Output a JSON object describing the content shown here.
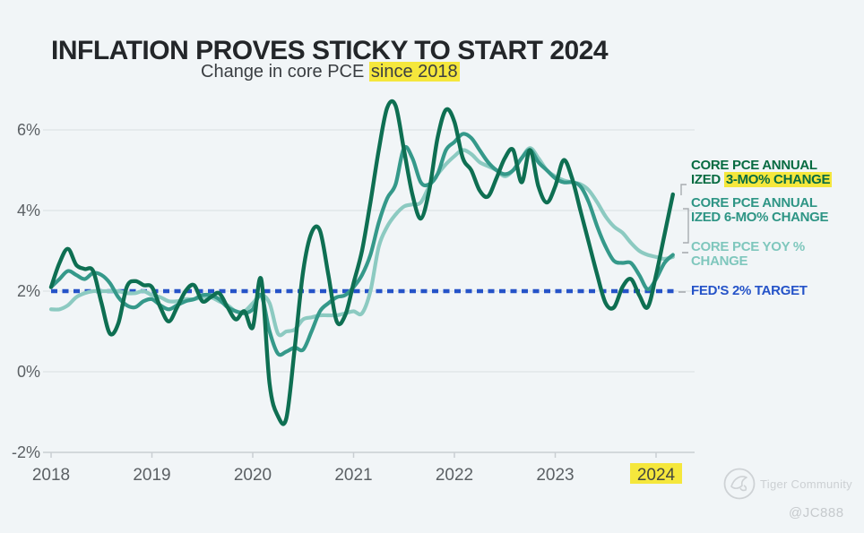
{
  "header": {
    "title": "INFLATION PROVES STICKY TO START 2024",
    "subtitle_prefix": "Change in core PCE ",
    "subtitle_highlight": "since 2018"
  },
  "legend": {
    "items": [
      {
        "line1": "CORE PCE ANNUAL",
        "line2_prefix": "IZED ",
        "line2_highlight": "3-MO% CHANGE",
        "color": "#076b41"
      },
      {
        "line1": "CORE PCE ANNUAL",
        "line2": "IZED 6-MO% CHANGE",
        "color": "#2e9585"
      },
      {
        "line1": "CORE PCE YOY %",
        "line2": "CHANGE",
        "color": "#7fc7bd"
      },
      {
        "line1": "FED'S 2% TARGET",
        "color": "#2553c8"
      }
    ]
  },
  "watermark": {
    "community": "Tiger Community",
    "user": "@JC888",
    "logo": "tiger-circle-sketch"
  },
  "colors": {
    "background": "#f1f5f7",
    "gridline": "#d9dee2",
    "axis": "#c9ced2",
    "tick_label": "#5b6064",
    "highlight_yellow": "#f5e73c",
    "series_3mo": "#0e6f52",
    "series_6mo": "#35998a",
    "series_yoy": "#8ccac1",
    "fed_target_blue": "#2553c8",
    "connector_gray": "#a7acb0"
  },
  "chart_data": {
    "type": "line",
    "title": "INFLATION PROVES STICKY TO START 2024",
    "subtitle": "Change in core PCE since 2018",
    "x_start_year": 2018,
    "x_step_months": 1,
    "x_tick_labels": [
      "2018",
      "2019",
      "2020",
      "2021",
      "2022",
      "2023",
      "2024"
    ],
    "x_highlight_tick": "2024",
    "y_ticks": [
      6,
      4,
      2,
      0,
      -2
    ],
    "y_tick_labels": [
      "6%",
      "4%",
      "2%",
      "0%",
      "-2%"
    ],
    "ylim": [
      -2.4,
      6.9
    ],
    "grid": "horizontal",
    "legend_position": "right",
    "target_line": {
      "label": "FED'S 2% TARGET",
      "value": 2,
      "style": "dotted",
      "color": "#2553c8"
    },
    "series": [
      {
        "name": "CORE PCE ANNUALIZED 3-MO% CHANGE",
        "color": "#0e6f52",
        "width": 4.4,
        "values": [
          2.1,
          2.7,
          3.05,
          2.65,
          2.55,
          2.5,
          1.7,
          0.95,
          1.2,
          2.1,
          2.25,
          2.15,
          2.1,
          1.6,
          1.25,
          1.6,
          2.0,
          2.15,
          1.75,
          1.85,
          1.95,
          1.6,
          1.3,
          1.5,
          1.1,
          2.3,
          -0.3,
          -1.1,
          -1.15,
          0.6,
          2.5,
          3.45,
          3.5,
          2.4,
          1.25,
          1.4,
          2.2,
          3.0,
          4.2,
          5.5,
          6.55,
          6.6,
          5.5,
          4.4,
          3.8,
          4.5,
          5.8,
          6.5,
          6.2,
          5.3,
          5.0,
          4.5,
          4.35,
          4.8,
          5.3,
          5.5,
          4.7,
          5.5,
          4.6,
          4.2,
          4.6,
          5.25,
          4.8,
          4.0,
          3.2,
          2.4,
          1.7,
          1.6,
          2.1,
          2.3,
          1.9,
          1.6,
          2.4,
          3.4,
          4.4
        ]
      },
      {
        "name": "CORE PCE ANNUALIZED 6-MO% CHANGE",
        "color": "#35998a",
        "width": 4.2,
        "values": [
          2.1,
          2.3,
          2.5,
          2.4,
          2.3,
          2.45,
          2.4,
          2.2,
          1.85,
          1.65,
          1.6,
          1.75,
          1.8,
          1.65,
          1.55,
          1.65,
          1.75,
          1.8,
          1.9,
          1.9,
          1.8,
          1.6,
          1.5,
          1.45,
          1.55,
          1.9,
          1.0,
          0.45,
          0.5,
          0.6,
          0.55,
          1.0,
          1.5,
          1.7,
          1.85,
          1.9,
          2.1,
          2.4,
          2.9,
          3.7,
          4.3,
          4.65,
          5.55,
          5.3,
          4.7,
          4.65,
          4.9,
          5.5,
          5.7,
          5.9,
          5.8,
          5.5,
          5.2,
          5.0,
          4.9,
          5.0,
          5.3,
          5.5,
          5.2,
          5.0,
          4.8,
          4.7,
          4.7,
          4.6,
          4.2,
          3.6,
          3.1,
          2.75,
          2.7,
          2.7,
          2.4,
          2.05,
          2.3,
          2.7,
          2.9
        ]
      },
      {
        "name": "CORE PCE YOY % CHANGE",
        "color": "#8ccac1",
        "width": 4.2,
        "values": [
          1.55,
          1.55,
          1.65,
          1.85,
          1.95,
          2.0,
          2.0,
          2.0,
          2.0,
          1.95,
          1.95,
          2.0,
          1.9,
          1.85,
          1.75,
          1.75,
          1.8,
          1.8,
          1.85,
          1.85,
          1.75,
          1.65,
          1.5,
          1.5,
          1.7,
          1.9,
          1.7,
          0.95,
          1.0,
          1.05,
          1.3,
          1.35,
          1.4,
          1.4,
          1.4,
          1.45,
          1.5,
          1.45,
          2.0,
          3.1,
          3.6,
          3.9,
          4.1,
          4.15,
          4.2,
          4.6,
          4.9,
          5.15,
          5.35,
          5.5,
          5.4,
          5.2,
          5.1,
          5.0,
          4.85,
          5.0,
          5.3,
          5.55,
          5.3,
          5.0,
          4.85,
          4.75,
          4.7,
          4.65,
          4.5,
          4.2,
          3.85,
          3.6,
          3.45,
          3.2,
          3.0,
          2.9,
          2.85,
          2.8,
          2.85
        ]
      }
    ]
  }
}
